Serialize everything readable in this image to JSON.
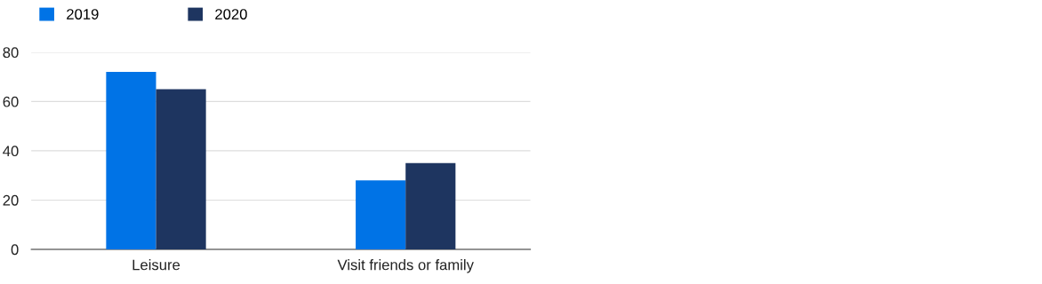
{
  "chart_data": {
    "type": "bar",
    "categories": [
      "Leisure",
      "Visit friends or family"
    ],
    "series": [
      {
        "name": "2019",
        "color": "#0073e6",
        "values": [
          72,
          28
        ]
      },
      {
        "name": "2020",
        "color": "#1e3560",
        "values": [
          65,
          35
        ]
      }
    ],
    "ylim": [
      0,
      80
    ],
    "yticks": [
      0,
      20,
      40,
      60,
      80
    ],
    "grid": "y",
    "legend": "top left"
  }
}
